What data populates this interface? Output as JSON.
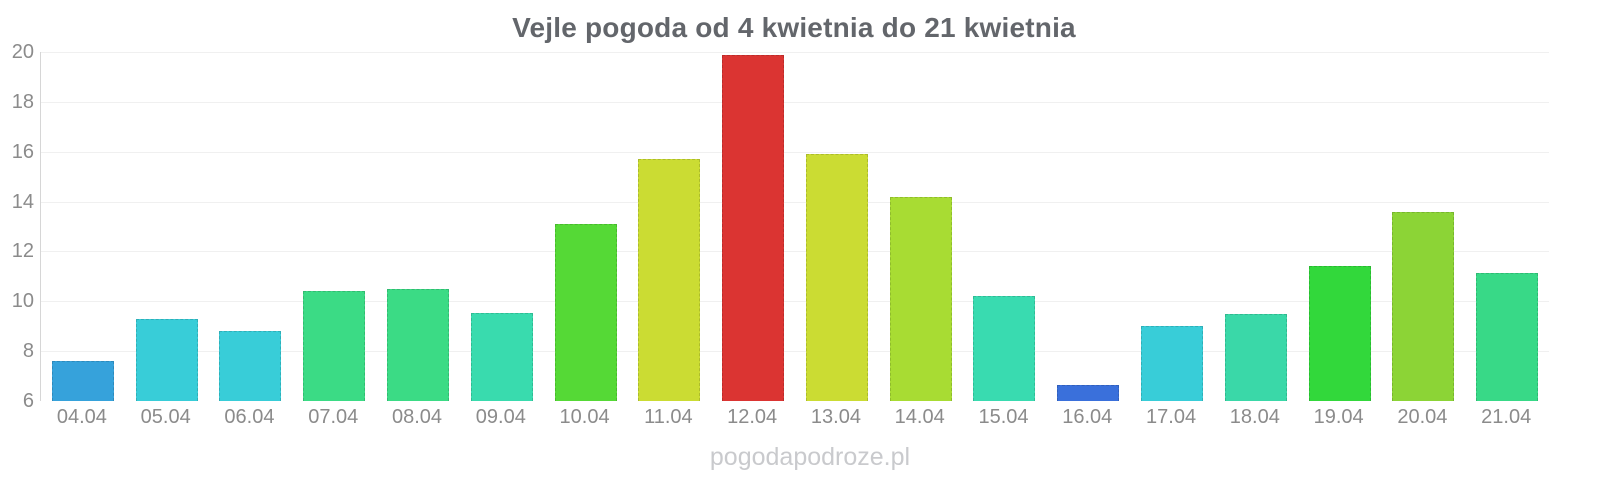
{
  "title": "Vejle pogoda od 4 kwietnia do 21 kwietnia",
  "watermark": "pogodapodroze.pl",
  "colors": {
    "background": "#ffffff",
    "title_text": "#63666b",
    "axis_text": "#8b8b8b",
    "axis_line": "#d6d6d6",
    "gridline": "#f0f0f0",
    "watermark_text": "#c9cacd"
  },
  "chart_data": {
    "type": "bar",
    "title": "Vejle pogoda od 4 kwietnia do 21 kwietnia",
    "categories": [
      "04.04",
      "05.04",
      "06.04",
      "07.04",
      "08.04",
      "09.04",
      "10.04",
      "11.04",
      "12.04",
      "13.04",
      "14.04",
      "15.04",
      "16.04",
      "17.04",
      "18.04",
      "19.04",
      "20.04",
      "21.04"
    ],
    "values": [
      7.6,
      9.3,
      8.8,
      10.4,
      10.5,
      9.55,
      13.1,
      15.7,
      19.9,
      15.9,
      14.2,
      10.2,
      6.65,
      9.0,
      9.5,
      11.4,
      13.6,
      11.15
    ],
    "bar_colors": [
      "#36a2db",
      "#38cdd8",
      "#38cdd8",
      "#3bdb85",
      "#3bdb85",
      "#39dbae",
      "#55d936",
      "#cbdc33",
      "#db3432",
      "#cbdc33",
      "#a8dc33",
      "#39dbb0",
      "#3a70db",
      "#38cdd8",
      "#3ad8a8",
      "#32d83b",
      "#8cd436",
      "#38d987"
    ],
    "xlabel": "",
    "ylabel": "",
    "ylim": [
      6,
      20
    ],
    "yticks": [
      6,
      8,
      10,
      12,
      14,
      16,
      18,
      20
    ],
    "grid": true,
    "legend": false
  }
}
